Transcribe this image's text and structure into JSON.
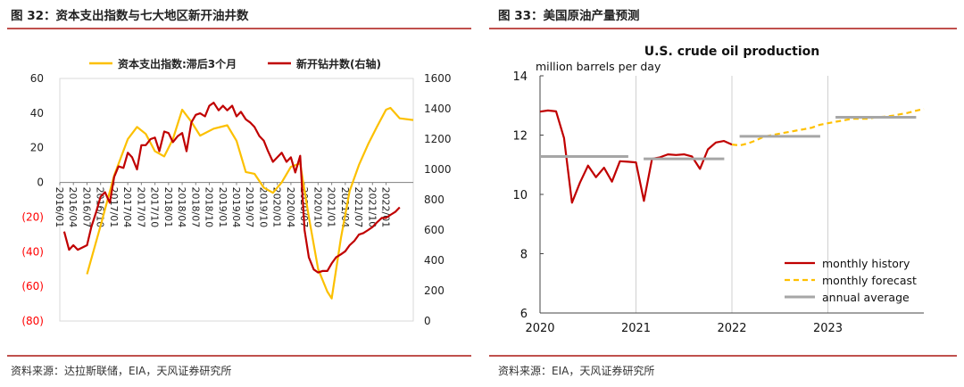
{
  "left_panel": {
    "title": "图 32：资本支出指数与七大地区新开油井数",
    "source": "资料来源：达拉斯联储，EIA，天风证券研究所"
  },
  "right_panel": {
    "title": "图 33：美国原油产量预测",
    "source": "资料来源：EIA，天风证券研究所"
  },
  "colors": {
    "rule": "#c0504d",
    "yellow": "#fcc000",
    "darkred": "#c00000",
    "gray": "#a6a6a6",
    "neg_tick": "#ff0000"
  },
  "chart_data": [
    {
      "type": "line",
      "title": "",
      "legend_placement": "top",
      "x_labels": [
        "2016/01",
        "2016/04",
        "2016/07",
        "2016/10",
        "2017/01",
        "2017/04",
        "2017/07",
        "2017/10",
        "2018/01",
        "2018/04",
        "2018/07",
        "2018/10",
        "2019/01",
        "2019/04",
        "2019/07",
        "2019/10",
        "2020/01",
        "2020/04",
        "2020/07",
        "2020/10",
        "2021/01",
        "2021/04",
        "2021/07",
        "2021/10",
        "2022/01"
      ],
      "y_left": {
        "ticks": [
          60,
          40,
          20,
          0,
          -20,
          -40,
          -60,
          -80
        ],
        "tick_labels": [
          "60",
          "40",
          "20",
          "0",
          "(20)",
          "(40)",
          "(60)",
          "(80)"
        ],
        "range": [
          -80,
          60
        ]
      },
      "y_right": {
        "ticks": [
          1600,
          1400,
          1200,
          1000,
          800,
          600,
          400,
          200,
          0
        ],
        "tick_labels": [
          "1600",
          "1400",
          "1200",
          "1000",
          "800",
          "600",
          "400",
          "200",
          "0"
        ],
        "range": [
          0,
          1600
        ]
      },
      "series": [
        {
          "name": "资本支出指数:滞后3个月",
          "axis": "left",
          "color": "#fcc000",
          "points": [
            [
              2016.5,
              -53
            ],
            [
              2016.75,
              -25
            ],
            [
              2017.0,
              4
            ],
            [
              2017.25,
              25
            ],
            [
              2017.42,
              32
            ],
            [
              2017.58,
              28
            ],
            [
              2017.75,
              18
            ],
            [
              2017.92,
              15
            ],
            [
              2018.08,
              25
            ],
            [
              2018.25,
              42
            ],
            [
              2018.42,
              35
            ],
            [
              2018.58,
              27
            ],
            [
              2018.83,
              31
            ],
            [
              2019.08,
              33
            ],
            [
              2019.25,
              24
            ],
            [
              2019.42,
              6
            ],
            [
              2019.58,
              5
            ],
            [
              2019.75,
              -3
            ],
            [
              2019.92,
              -6
            ],
            [
              2020.08,
              0
            ],
            [
              2020.25,
              9
            ],
            [
              2020.42,
              11
            ],
            [
              2020.58,
              -20
            ],
            [
              2020.75,
              -50
            ],
            [
              2020.92,
              -63
            ],
            [
              2021.0,
              -67
            ],
            [
              2021.17,
              -32
            ],
            [
              2021.33,
              -5
            ],
            [
              2021.5,
              10
            ],
            [
              2021.67,
              22
            ],
            [
              2021.83,
              32
            ],
            [
              2022.0,
              42
            ],
            [
              2022.08,
              43
            ],
            [
              2022.25,
              37
            ],
            [
              2022.5,
              36
            ]
          ]
        },
        {
          "name": "新开钻井数(右轴)",
          "axis": "right",
          "color": "#c00000",
          "points": [
            [
              2016.08,
              590
            ],
            [
              2016.17,
              470
            ],
            [
              2016.25,
              500
            ],
            [
              2016.33,
              470
            ],
            [
              2016.5,
              500
            ],
            [
              2016.58,
              620
            ],
            [
              2016.67,
              720
            ],
            [
              2016.75,
              820
            ],
            [
              2016.83,
              850
            ],
            [
              2016.92,
              780
            ],
            [
              2017.0,
              950
            ],
            [
              2017.08,
              1020
            ],
            [
              2017.17,
              1010
            ],
            [
              2017.25,
              1110
            ],
            [
              2017.33,
              1080
            ],
            [
              2017.42,
              1000
            ],
            [
              2017.5,
              1160
            ],
            [
              2017.58,
              1160
            ],
            [
              2017.67,
              1200
            ],
            [
              2017.75,
              1210
            ],
            [
              2017.83,
              1120
            ],
            [
              2017.92,
              1250
            ],
            [
              2018.0,
              1240
            ],
            [
              2018.08,
              1180
            ],
            [
              2018.17,
              1220
            ],
            [
              2018.25,
              1240
            ],
            [
              2018.33,
              1120
            ],
            [
              2018.42,
              1310
            ],
            [
              2018.5,
              1360
            ],
            [
              2018.58,
              1370
            ],
            [
              2018.67,
              1350
            ],
            [
              2018.75,
              1420
            ],
            [
              2018.83,
              1440
            ],
            [
              2018.92,
              1390
            ],
            [
              2019.0,
              1420
            ],
            [
              2019.08,
              1390
            ],
            [
              2019.17,
              1420
            ],
            [
              2019.25,
              1350
            ],
            [
              2019.33,
              1380
            ],
            [
              2019.42,
              1330
            ],
            [
              2019.5,
              1310
            ],
            [
              2019.58,
              1280
            ],
            [
              2019.67,
              1220
            ],
            [
              2019.75,
              1190
            ],
            [
              2019.83,
              1120
            ],
            [
              2019.92,
              1050
            ],
            [
              2020.0,
              1080
            ],
            [
              2020.08,
              1110
            ],
            [
              2020.17,
              1050
            ],
            [
              2020.25,
              1080
            ],
            [
              2020.33,
              980
            ],
            [
              2020.42,
              1090
            ],
            [
              2020.5,
              600
            ],
            [
              2020.58,
              420
            ],
            [
              2020.67,
              340
            ],
            [
              2020.75,
              320
            ],
            [
              2020.83,
              330
            ],
            [
              2020.92,
              330
            ],
            [
              2021.0,
              380
            ],
            [
              2021.08,
              420
            ],
            [
              2021.17,
              440
            ],
            [
              2021.25,
              460
            ],
            [
              2021.33,
              500
            ],
            [
              2021.42,
              530
            ],
            [
              2021.5,
              570
            ],
            [
              2021.58,
              580
            ],
            [
              2021.67,
              600
            ],
            [
              2021.75,
              620
            ],
            [
              2021.83,
              650
            ],
            [
              2021.92,
              680
            ],
            [
              2022.0,
              680
            ],
            [
              2022.08,
              700
            ],
            [
              2022.17,
              720
            ],
            [
              2022.25,
              750
            ]
          ]
        }
      ]
    },
    {
      "type": "line",
      "title": "U.S. crude oil production",
      "ylabel": "million barrels per day",
      "x_ticks": [
        2020,
        2021,
        2022,
        2023
      ],
      "x_range": [
        2020,
        2024
      ],
      "y_ticks": [
        6,
        8,
        10,
        12,
        14
      ],
      "ylim": [
        6,
        14
      ],
      "legend_placement": "bottom-right",
      "series": [
        {
          "name": "monthly history",
          "color": "#c00000",
          "style": "solid",
          "points": [
            [
              2020.0,
              12.79
            ],
            [
              2020.083,
              12.83
            ],
            [
              2020.167,
              12.8
            ],
            [
              2020.25,
              11.9
            ],
            [
              2020.333,
              9.72
            ],
            [
              2020.417,
              10.4
            ],
            [
              2020.5,
              10.97
            ],
            [
              2020.583,
              10.58
            ],
            [
              2020.667,
              10.9
            ],
            [
              2020.75,
              10.43
            ],
            [
              2020.833,
              11.12
            ],
            [
              2020.917,
              11.1
            ],
            [
              2021.0,
              11.08
            ],
            [
              2021.083,
              9.78
            ],
            [
              2021.167,
              11.2
            ],
            [
              2021.25,
              11.25
            ],
            [
              2021.333,
              11.35
            ],
            [
              2021.417,
              11.33
            ],
            [
              2021.5,
              11.35
            ],
            [
              2021.583,
              11.28
            ],
            [
              2021.667,
              10.86
            ],
            [
              2021.75,
              11.52
            ],
            [
              2021.833,
              11.75
            ],
            [
              2021.917,
              11.8
            ],
            [
              2022.0,
              11.68
            ]
          ]
        },
        {
          "name": "monthly forecast",
          "color": "#ffc000",
          "style": "dashed",
          "points": [
            [
              2022.0,
              11.68
            ],
            [
              2022.083,
              11.65
            ],
            [
              2022.167,
              11.72
            ],
            [
              2022.25,
              11.82
            ],
            [
              2022.333,
              11.95
            ],
            [
              2022.417,
              12.0
            ],
            [
              2022.5,
              12.05
            ],
            [
              2022.583,
              12.1
            ],
            [
              2022.667,
              12.15
            ],
            [
              2022.75,
              12.2
            ],
            [
              2022.833,
              12.25
            ],
            [
              2022.917,
              12.35
            ],
            [
              2023.0,
              12.4
            ],
            [
              2023.083,
              12.45
            ],
            [
              2023.167,
              12.5
            ],
            [
              2023.25,
              12.55
            ],
            [
              2023.333,
              12.55
            ],
            [
              2023.417,
              12.55
            ],
            [
              2023.5,
              12.6
            ],
            [
              2023.583,
              12.62
            ],
            [
              2023.667,
              12.65
            ],
            [
              2023.75,
              12.7
            ],
            [
              2023.833,
              12.75
            ],
            [
              2023.917,
              12.82
            ],
            [
              2024.0,
              12.88
            ]
          ]
        },
        {
          "name": "annual average",
          "color": "#a6a6a6",
          "style": "solid",
          "segments": [
            [
              2020.0,
              2020.92,
              11.28
            ],
            [
              2021.08,
              2021.92,
              11.2
            ],
            [
              2022.08,
              2022.92,
              11.96
            ],
            [
              2023.08,
              2023.92,
              12.6
            ]
          ]
        }
      ]
    }
  ]
}
